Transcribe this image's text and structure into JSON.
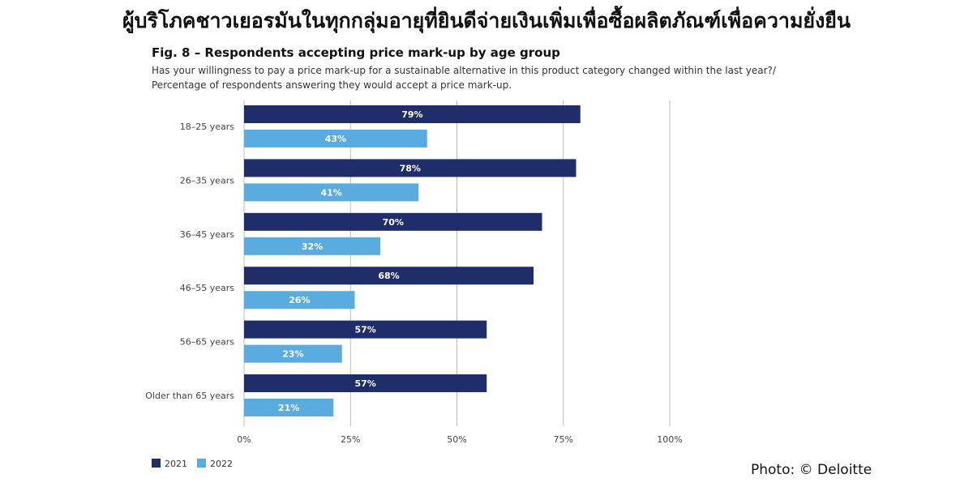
{
  "headline": "ผู้บริโภคชาวเยอรมันในทุกกลุ่มอายุที่ยินดีจ่ายเงินเพิ่มเพื่อซื้อผลิตภัณฑ์เพื่อความยั่งยืน",
  "credit": "Photo: © Deloitte",
  "colors": {
    "series_2021": "#1f2d6b",
    "series_2022": "#5aace0",
    "grid": "#bbbbbb"
  },
  "chart_data": {
    "type": "bar",
    "orientation": "horizontal",
    "title": "Fig. 8 – Respondents accepting price mark-up by age group",
    "subtitle_lines": [
      "Has your willingness to pay a price mark-up for a sustainable alternative in this product category changed within the last year?/",
      "Percentage of respondents answering they would accept a price mark-up."
    ],
    "categories": [
      "18–25 years",
      "26–35 years",
      "36–45 years",
      "46–55 years",
      "56–65 years",
      "Older than 65 years"
    ],
    "series": [
      {
        "name": "2021",
        "values": [
          79,
          78,
          70,
          68,
          57,
          57
        ],
        "labels": [
          "79%",
          "78%",
          "70%",
          "68%",
          "57%",
          "57%"
        ]
      },
      {
        "name": "2022",
        "values": [
          43,
          41,
          32,
          26,
          23,
          21
        ],
        "labels": [
          "43%",
          "41%",
          "32%",
          "26%",
          "23%",
          "21%"
        ]
      }
    ],
    "xlim": [
      0,
      100
    ],
    "xticks": [
      0,
      25,
      50,
      75,
      100
    ],
    "xtick_labels": [
      "0%",
      "25%",
      "50%",
      "75%",
      "100%"
    ],
    "grid": true,
    "legend_position": "bottom-left"
  }
}
